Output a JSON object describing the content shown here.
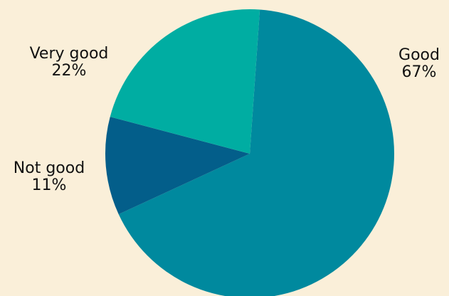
{
  "chart_data": {
    "type": "pie",
    "slices": [
      {
        "label": "Good",
        "value": 67,
        "value_label": "67%",
        "color": "#00899e"
      },
      {
        "label": "Not good",
        "value": 11,
        "value_label": "11%",
        "color": "#035e8a"
      },
      {
        "label": "Very good",
        "value": 22,
        "value_label": "22%",
        "color": "#00ada2"
      }
    ],
    "start_angle_deg": 4,
    "direction": "clockwise",
    "legend": "none",
    "background_color": "#faefd9"
  }
}
